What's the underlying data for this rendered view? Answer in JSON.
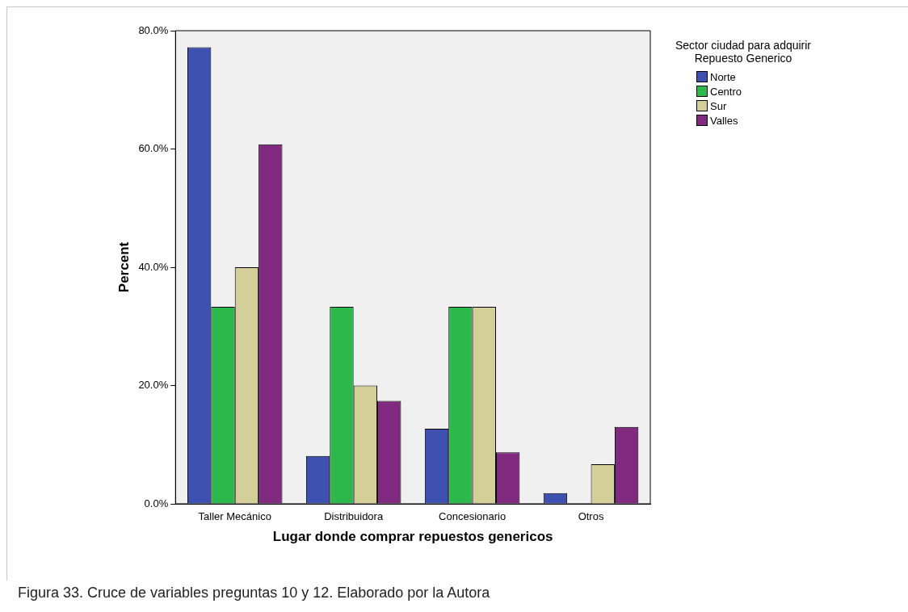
{
  "chart_data": {
    "type": "bar",
    "xlabel": "Lugar donde comprar repuestos genericos",
    "ylabel": "Percent",
    "legend_title": "Sector ciudad para adquirir Repuesto Generico",
    "legend": "top right",
    "grid": false,
    "categories": [
      "Taller Mecánico",
      "Distribuidora",
      "Concesionario",
      "Otros"
    ],
    "series": [
      {
        "name": "Norte",
        "color": "#3f51b0",
        "values": [
          77.2,
          8.1,
          12.7,
          1.8
        ]
      },
      {
        "name": "Centro",
        "color": "#2db84b",
        "values": [
          33.3,
          33.3,
          33.3,
          0
        ]
      },
      {
        "name": "Sur",
        "color": "#d4cf98",
        "values": [
          40,
          20,
          33.3,
          6.7
        ]
      },
      {
        "name": "Valles",
        "color": "#7f2a7f",
        "values": [
          60.8,
          17.4,
          8.7,
          13
        ]
      }
    ],
    "ylim": [
      0,
      80
    ],
    "yticks": [
      {
        "value": 0,
        "label": "0.0%"
      },
      {
        "value": 20,
        "label": "20.0%"
      },
      {
        "value": 40,
        "label": "40.0%"
      },
      {
        "value": 60,
        "label": "60.0%"
      },
      {
        "value": 80,
        "label": "80.0%"
      }
    ],
    "annotations": [
      "Figura 33. Cruce de variables preguntas 10 y 12. Elaborado por la Autora"
    ]
  }
}
